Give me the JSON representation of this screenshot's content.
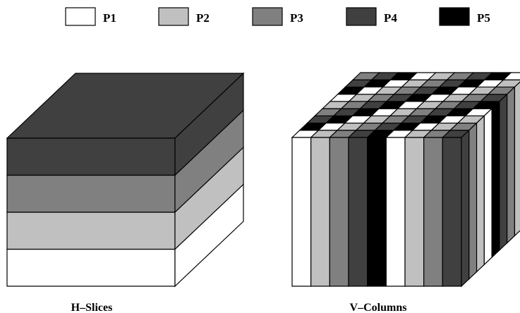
{
  "colors": {
    "P1": "#ffffff",
    "P2": "#c0c0c0",
    "P3": "#808080",
    "P4": "#404040",
    "P5": "#000000",
    "outline": "#000000"
  },
  "legend": {
    "items": [
      {
        "key": "P1",
        "label": "P1"
      },
      {
        "key": "P2",
        "label": "P2"
      },
      {
        "key": "P3",
        "label": "P3"
      },
      {
        "key": "P4",
        "label": "P4"
      },
      {
        "key": "P5",
        "label": "P5"
      }
    ]
  },
  "hslices": {
    "caption": "H–Slices",
    "layers_bottom_to_top": [
      "P1",
      "P2",
      "P3",
      "P4"
    ]
  },
  "vcolumns": {
    "caption": "V–Columns",
    "pattern": [
      "P1",
      "P2",
      "P3",
      "P4",
      "P5"
    ]
  }
}
